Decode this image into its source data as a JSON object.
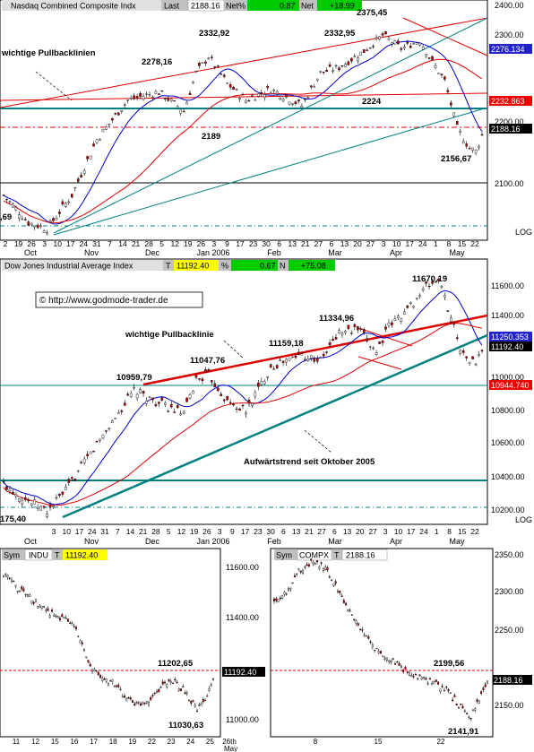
{
  "colors": {
    "up_candle": "#ffffff",
    "down_candle": "#cc0000",
    "wick": "#000000",
    "red_line": "#dd0000",
    "blue_line": "#0000cc",
    "teal_line": "#008080",
    "label_blue_bg": "#2222cc",
    "label_red_bg": "#ee0000",
    "label_black_bg": "#000000",
    "header_green": "#00cc00",
    "header_grey": "#d0d0d0",
    "header_yellow": "#ffff00"
  },
  "panel1": {
    "header": {
      "name": "Nasdaq Combined Composite Indx",
      "last_label": "Last",
      "last_value": "2188.16",
      "netpct_label": "Net%",
      "netpct_value": "0.87",
      "net_label": "Net",
      "net_value": "+18.99"
    },
    "annotation": "wichtige Pullbacklinien",
    "y_ticks": [
      "2400.00",
      "2300.00",
      "2200.00",
      "2100.00"
    ],
    "log_label": "LOG",
    "price_tags": [
      "2276.134",
      "2232.863",
      "2188.16"
    ],
    "x_ticks": [
      "2",
      "19",
      "26",
      "3",
      "10",
      "17",
      "24",
      "31",
      "7",
      "14",
      "21",
      "28",
      "5",
      "12",
      "19",
      "26",
      "3",
      "9",
      "17",
      "23",
      "30",
      "6",
      "13",
      "21",
      "27",
      "6",
      "13",
      "20",
      "27",
      "3",
      "10",
      "17",
      "24",
      "1",
      "8",
      "15",
      "22"
    ],
    "month_labels": [
      "Oct",
      "Nov",
      "Dec",
      "Jan 2006",
      "Feb",
      "Mar",
      "Apr",
      "May"
    ],
    "value_labels": [
      "2278,16",
      "2332,92",
      "2332,95",
      "2375,45",
      "2224",
      "2189",
      "2156,67",
      ",69"
    ]
  },
  "panel2": {
    "header": {
      "name": "Dow Jones Industrial Average Index",
      "t_label": "T",
      "last_value": "11192.40",
      "pct_label": "%",
      "pct_value": "0.67",
      "n_label": "N",
      "net_value": "+75.08"
    },
    "watermark": "© http://www.godmode-trader.de",
    "annotation1": "wichtige Pullbacklinie",
    "annotation2": "Aufwärtstrend seit Oktober 2005",
    "y_ticks": [
      "11600.00",
      "11400.00",
      "11200.00",
      "11000.00",
      "10800.00",
      "10600.00",
      "10400.00",
      "10200.00"
    ],
    "log_label": "LOG",
    "price_tags": [
      "11250.353",
      "11192.40",
      "10944.740"
    ],
    "x_ticks": [
      "3",
      "10",
      "17",
      "24",
      "31",
      "7",
      "14",
      "21",
      "28",
      "5",
      "12",
      "19",
      "26",
      "3",
      "9",
      "17",
      "23",
      "30",
      "6",
      "13",
      "21",
      "27",
      "6",
      "13",
      "20",
      "27",
      "3",
      "10",
      "17",
      "24",
      "1",
      "8",
      "15",
      "22"
    ],
    "month_labels": [
      "Oct",
      "Nov",
      "Dec",
      "Jan 2006",
      "Feb",
      "Mar",
      "Apr",
      "May"
    ],
    "value_labels": [
      "11670,19",
      "11334,96",
      "11159,18",
      "11047,76",
      "10959,79",
      "175,40"
    ]
  },
  "panel3": {
    "header": {
      "sym_label": "Sym",
      "sym_value": "INDU",
      "t_label": "T",
      "last_value": "11192.40"
    },
    "y_ticks": [
      "11600.00",
      "11400.00",
      "11200.00",
      "11000.00"
    ],
    "price_tag": "11192.40",
    "x_ticks": [
      "11",
      "12",
      "15",
      "16",
      "17",
      "18",
      "19",
      "22",
      "23",
      "24",
      "25",
      "26th"
    ],
    "month_label": "May",
    "value_labels": [
      "11202,65",
      "11030,63"
    ]
  },
  "panel4": {
    "header": {
      "sym_label": "Sym",
      "sym_value": "COMPX",
      "t_label": "T",
      "last_value": "2188.16"
    },
    "y_ticks": [
      "2350.00",
      "2300.00",
      "2250.00",
      "2200.00",
      "2150.00"
    ],
    "price_tag": "2188.16",
    "x_ticks": [
      "8",
      "15",
      "22"
    ],
    "value_labels": [
      "2199,56",
      "2141,91"
    ]
  },
  "chart_data": [
    {
      "type": "candlestick",
      "title": "Nasdaq Combined Composite Indx",
      "ylim": [
        2020,
        2410
      ],
      "scale": "log",
      "x": [
        "Oct",
        "Nov",
        "Dec",
        "Jan 2006",
        "Feb",
        "Mar",
        "Apr",
        "May"
      ],
      "series": [
        {
          "name": "price",
          "keypoints": [
            [
              0,
              2085
            ],
            [
              8,
              2040
            ],
            [
              14,
              2030
            ],
            [
              22,
              2085
            ],
            [
              30,
              2180
            ],
            [
              40,
              2250
            ],
            [
              50,
              2265
            ],
            [
              58,
              2230
            ],
            [
              62,
              2300
            ],
            [
              66,
              2330
            ],
            [
              72,
              2280
            ],
            [
              78,
              2250
            ],
            [
              86,
              2270
            ],
            [
              96,
              2240
            ],
            [
              102,
              2300
            ],
            [
              108,
              2310
            ],
            [
              116,
              2340
            ],
            [
              122,
              2370
            ],
            [
              128,
              2345
            ],
            [
              134,
              2360
            ],
            [
              138,
              2320
            ],
            [
              142,
              2285
            ],
            [
              146,
              2200
            ],
            [
              150,
              2165
            ],
            [
              152,
              2160
            ],
            [
              154,
              2188
            ]
          ]
        }
      ],
      "reference_levels": [
        2276.134,
        2232.863,
        2188.16
      ]
    },
    {
      "type": "candlestick",
      "title": "Dow Jones Industrial Average Index",
      "ylim": [
        10150,
        11720
      ],
      "scale": "log",
      "x": [
        "Oct",
        "Nov",
        "Dec",
        "Jan 2006",
        "Feb",
        "Mar",
        "Apr",
        "May"
      ],
      "series": [
        {
          "name": "price",
          "keypoints": [
            [
              0,
              10360
            ],
            [
              8,
              10260
            ],
            [
              14,
              10200
            ],
            [
              20,
              10320
            ],
            [
              30,
              10600
            ],
            [
              42,
              10930
            ],
            [
              50,
              10850
            ],
            [
              58,
              10780
            ],
            [
              62,
              11000
            ],
            [
              66,
              11030
            ],
            [
              72,
              10860
            ],
            [
              78,
              10800
            ],
            [
              86,
              11080
            ],
            [
              96,
              11160
            ],
            [
              102,
              11120
            ],
            [
              108,
              11300
            ],
            [
              114,
              11320
            ],
            [
              120,
              11180
            ],
            [
              124,
              11340
            ],
            [
              130,
              11450
            ],
            [
              136,
              11600
            ],
            [
              140,
              11650
            ],
            [
              144,
              11400
            ],
            [
              148,
              11150
            ],
            [
              152,
              11100
            ],
            [
              154,
              11192
            ]
          ]
        }
      ],
      "reference_levels": [
        11250.353,
        11192.4,
        10944.74
      ]
    },
    {
      "type": "candlestick",
      "title": "INDU",
      "ylim": [
        10950,
        11720
      ],
      "series": [
        {
          "name": "price",
          "keypoints": [
            [
              0,
              11660
            ],
            [
              6,
              11600
            ],
            [
              12,
              11560
            ],
            [
              18,
              11520
            ],
            [
              24,
              11480
            ],
            [
              30,
              11460
            ],
            [
              36,
              11420
            ],
            [
              42,
              11260
            ],
            [
              48,
              11200
            ],
            [
              54,
              11180
            ],
            [
              60,
              11120
            ],
            [
              66,
              11080
            ],
            [
              72,
              11100
            ],
            [
              78,
              11160
            ],
            [
              84,
              11190
            ],
            [
              90,
              11140
            ],
            [
              96,
              11060
            ],
            [
              100,
              11100
            ],
            [
              104,
              11192
            ]
          ]
        }
      ],
      "reference_levels": [
        11202.65,
        11192.4
      ]
    },
    {
      "type": "candlestick",
      "title": "COMPX",
      "ylim": [
        2120,
        2355
      ],
      "series": [
        {
          "name": "price",
          "keypoints": [
            [
              0,
              2300
            ],
            [
              6,
              2310
            ],
            [
              12,
              2340
            ],
            [
              18,
              2350
            ],
            [
              24,
              2345
            ],
            [
              30,
              2320
            ],
            [
              36,
              2290
            ],
            [
              42,
              2260
            ],
            [
              48,
              2240
            ],
            [
              54,
              2225
            ],
            [
              60,
              2215
            ],
            [
              66,
              2200
            ],
            [
              72,
              2195
            ],
            [
              78,
              2190
            ],
            [
              84,
              2180
            ],
            [
              90,
              2160
            ],
            [
              96,
              2145
            ],
            [
              100,
              2170
            ],
            [
              104,
              2188
            ]
          ]
        }
      ],
      "reference_levels": [
        2199.56,
        2188.16
      ]
    }
  ]
}
